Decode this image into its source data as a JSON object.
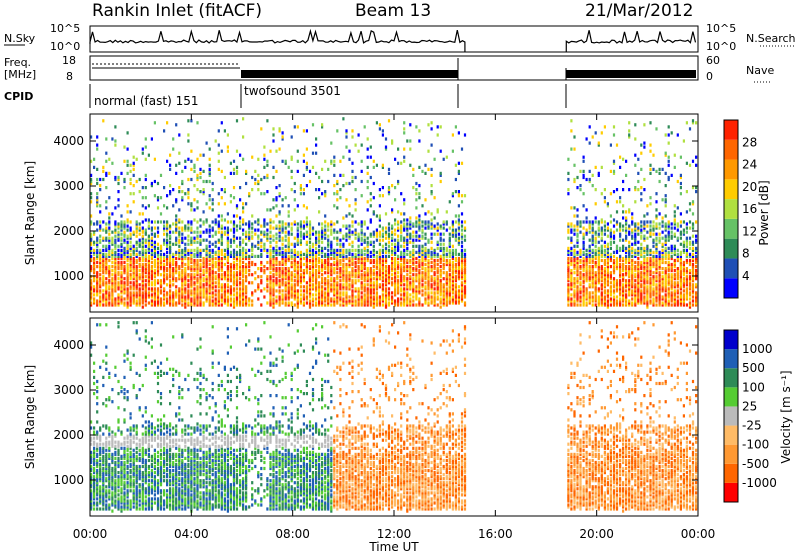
{
  "header": {
    "title": "Rankin Inlet (fitACF)",
    "beam": "Beam 13",
    "date": "21/Mar/2012"
  },
  "labels": {
    "nsky": "N.Sky",
    "nsearch": "N.Search",
    "freq_l1": "Freq.",
    "freq_l2": "[MHz]",
    "nave": "Nave",
    "cpid": "CPID",
    "mode1": "normal (fast) 151",
    "mode2": "twofsound 3501",
    "nsky_top": "10^5",
    "nsky_bot": "10^0",
    "freq_top": "18",
    "freq_bot": "8",
    "nave_top": "60",
    "nave_bot": "0",
    "xlabel": "Time UT"
  },
  "colors": {
    "power_scale": [
      "#0000ff",
      "#1f4fb5",
      "#2e8b57",
      "#66c266",
      "#b0e040",
      "#ffcc00",
      "#ff9900",
      "#ff6600",
      "#ff2200"
    ],
    "velocity_scale": [
      "#0000cc",
      "#1f5fb5",
      "#2e8b57",
      "#55cc33",
      "#bbbbbb",
      "#ffbb66",
      "#ff9933",
      "#ff6600",
      "#ff0000"
    ]
  },
  "chart_data": [
    {
      "type": "heatmap",
      "name": "power-panel",
      "ylabel": "Slant Range [km]",
      "xlabel": "Time UT",
      "xlim": [
        0,
        24
      ],
      "ylim": [
        200,
        4600
      ],
      "xticks": [
        "00:00",
        "04:00",
        "08:00",
        "12:00",
        "16:00",
        "20:00",
        "00:00"
      ],
      "yticks": [
        1000,
        2000,
        3000,
        4000
      ],
      "colorbar": {
        "label": "Power [dB]",
        "ticks": [
          "4",
          "8",
          "12",
          "16",
          "20",
          "24",
          "28"
        ],
        "range": [
          0,
          30
        ]
      },
      "data_gaps": [
        [
          14.8,
          18.8
        ]
      ]
    },
    {
      "type": "heatmap",
      "name": "velocity-panel",
      "ylabel": "Slant Range [km]",
      "xlabel": "Time UT",
      "xlim": [
        0,
        24
      ],
      "ylim": [
        200,
        4600
      ],
      "xticks": [
        "00:00",
        "04:00",
        "08:00",
        "12:00",
        "16:00",
        "20:00",
        "00:00"
      ],
      "yticks": [
        1000,
        2000,
        3000,
        4000
      ],
      "colorbar": {
        "label": "Velocity [m s⁻¹]",
        "ticks": [
          "1000",
          "500",
          "100",
          "25",
          "-25",
          "-100",
          "-500",
          "-1000"
        ]
      },
      "data_gaps": [
        [
          14.8,
          18.8
        ]
      ]
    }
  ]
}
